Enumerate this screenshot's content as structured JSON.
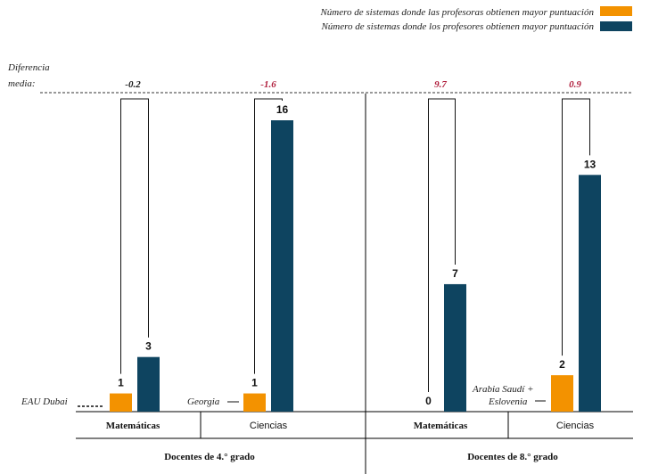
{
  "chart_data": {
    "type": "bar",
    "legend": {
      "position": "top-right",
      "entries": [
        {
          "label": "Número de sistemas donde las profesoras obtienen mayor puntuación",
          "color": "#F39200"
        },
        {
          "label": "Número de sistemas donde los profesores obtienen mayor puntuación",
          "color": "#0E4460"
        }
      ]
    },
    "diff_label": [
      "Diferencia",
      "media:"
    ],
    "groups": [
      {
        "label": "Docentes de 4.° grado",
        "subgroups": [
          {
            "label": "Matemáticas",
            "female": 1,
            "male": 3,
            "diff": "-0.2",
            "diff_color": "#1a1a1a",
            "note": "EAU Dubai"
          },
          {
            "label": "Ciencias",
            "female": 1,
            "male": 16,
            "diff": "-1.6",
            "diff_color": "#B01E3C",
            "note": "Georgia"
          }
        ]
      },
      {
        "label": "Docentes de 8.° grado",
        "subgroups": [
          {
            "label": "Matemáticas",
            "female": 0,
            "male": 7,
            "diff": "9.7",
            "diff_color": "#B01E3C",
            "note": ""
          },
          {
            "label": "Ciencias",
            "female": 2,
            "male": 13,
            "diff": "0.9",
            "diff_color": "#B01E3C",
            "note": "Arabia Saudí + Eslovenia"
          }
        ]
      }
    ],
    "ylim": [
      0,
      16
    ],
    "grid": false
  }
}
